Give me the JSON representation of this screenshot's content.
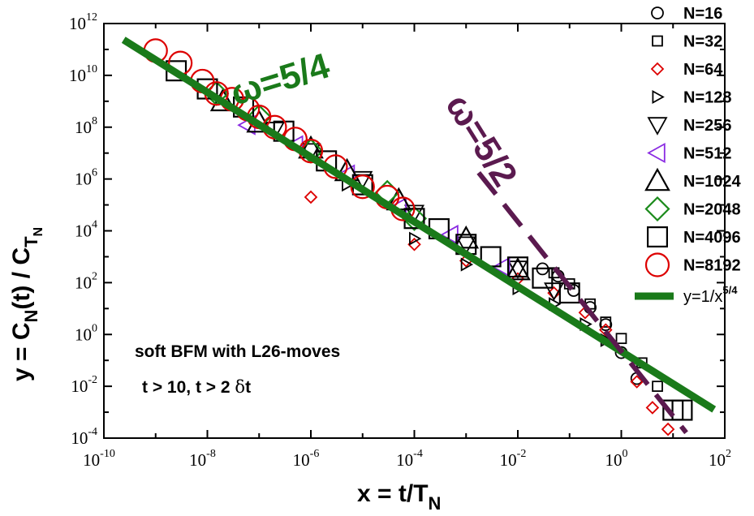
{
  "chart_data": {
    "type": "scatter",
    "xlabel": {
      "main": "x = t/T",
      "sub": "N"
    },
    "ylabel": {
      "p1": "y = C",
      "s1": "N",
      "p2": "(t) / C",
      "s2": "T",
      "s3": "N"
    },
    "xscale": "log",
    "yscale": "log",
    "xlim": [
      1e-10,
      100
    ],
    "ylim": [
      0.0001,
      1000000000000.0
    ],
    "x_ticks": [
      {
        "value": 1e-10,
        "base": "10",
        "exp": "-10"
      },
      {
        "value": 1e-08,
        "base": "10",
        "exp": "-8"
      },
      {
        "value": 1e-06,
        "base": "10",
        "exp": "-6"
      },
      {
        "value": 0.0001,
        "base": "10",
        "exp": "-4"
      },
      {
        "value": 0.01,
        "base": "10",
        "exp": "-2"
      },
      {
        "value": 1,
        "base": "10",
        "exp": "0"
      },
      {
        "value": 100,
        "base": "10",
        "exp": "2"
      }
    ],
    "y_ticks": [
      {
        "value": 0.0001,
        "base": "10",
        "exp": "-4"
      },
      {
        "value": 0.01,
        "base": "10",
        "exp": "-2"
      },
      {
        "value": 1,
        "base": "10",
        "exp": "0"
      },
      {
        "value": 100,
        "base": "10",
        "exp": "2"
      },
      {
        "value": 10000.0,
        "base": "10",
        "exp": "4"
      },
      {
        "value": 1000000.0,
        "base": "10",
        "exp": "6"
      },
      {
        "value": 100000000.0,
        "base": "10",
        "exp": "8"
      },
      {
        "value": 10000000000.0,
        "base": "10",
        "exp": "10"
      },
      {
        "value": 1000000000000.0,
        "base": "10",
        "exp": "12"
      }
    ],
    "annotations": {
      "line1": "soft BFM with L26-moves",
      "line2a": "t > 10, t > 2 ",
      "line2b": "δ",
      "line2c": "t"
    },
    "omega_labels": {
      "green": "ω=5/4",
      "purple": "ω=5/2"
    },
    "legend_placement": "right",
    "lines": [
      {
        "name": "y=1/x",
        "exp_label": "5/4",
        "color": "#1a7a1a",
        "style": "solid",
        "exponent": -1.25,
        "x_range": [
          2.4e-10,
          62
        ]
      },
      {
        "name": "",
        "color": "#5b1a4f",
        "style": "dashed",
        "exponent": -2.5,
        "x_range": [
          0.00175,
          18
        ]
      }
    ],
    "series": [
      {
        "name": "N=16",
        "marker": "circle",
        "size": "small",
        "color": "#000000",
        "points": [
          [
            0.03,
            340
          ],
          [
            0.06,
            180
          ],
          [
            0.12,
            50
          ],
          [
            0.25,
            11
          ],
          [
            0.5,
            2.4
          ],
          [
            1.0,
            0.2
          ],
          [
            2.0,
            0.02
          ]
        ]
      },
      {
        "name": "N=32",
        "marker": "square",
        "size": "small",
        "color": "#000000",
        "points": [
          [
            0.05,
            240
          ],
          [
            0.1,
            90
          ],
          [
            0.25,
            15
          ],
          [
            0.5,
            3
          ],
          [
            1.0,
            0.7
          ],
          [
            2.5,
            0.08
          ],
          [
            5.0,
            0.01
          ]
        ]
      },
      {
        "name": "N=64",
        "marker": "diamond",
        "size": "small",
        "color": "#dd0000",
        "points": [
          [
            1e-06,
            200000.0
          ],
          [
            0.0001,
            3000.0
          ],
          [
            0.001,
            700
          ],
          [
            0.01,
            140
          ],
          [
            0.05,
            40
          ],
          [
            0.2,
            7
          ],
          [
            0.5,
            1.5
          ],
          [
            2.0,
            0.015
          ],
          [
            4.0,
            0.0015
          ],
          [
            8.0,
            0.00022
          ]
        ]
      },
      {
        "name": "N=128",
        "marker": "triangle-right",
        "size": "small",
        "color": "#000000",
        "points": [
          [
            5e-06,
            600000.0
          ],
          [
            0.0001,
            5000.0
          ],
          [
            0.001,
            500
          ],
          [
            0.01,
            60
          ],
          [
            0.05,
            15
          ],
          [
            0.2,
            2.5
          ],
          [
            0.5,
            0.6
          ]
        ]
      },
      {
        "name": "N=256",
        "marker": "triangle-down",
        "size": "medium",
        "color": "#000000",
        "points": [
          [
            2e-07,
            80000000.0
          ],
          [
            1e-06,
            12000000.0
          ],
          [
            1e-05,
            1000000.0
          ],
          [
            0.0001,
            50000.0
          ],
          [
            0.001,
            3000.0
          ],
          [
            0.01,
            350
          ],
          [
            0.05,
            50
          ]
        ]
      },
      {
        "name": "N=512",
        "marker": "triangle-left",
        "size": "medium",
        "color": "#8a2be2",
        "points": [
          [
            6e-08,
            120000000.0
          ],
          [
            5e-07,
            20000000.0
          ],
          [
            5e-06,
            1500000.0
          ],
          [
            5e-05,
            80000.0
          ],
          [
            0.0005,
            7000.0
          ],
          [
            0.005,
            400
          ]
        ]
      },
      {
        "name": "N=1024",
        "marker": "triangle-up",
        "size": "large",
        "color": "#000000",
        "points": [
          [
            2e-08,
            1000000000.0
          ],
          [
            1e-07,
            150000000.0
          ],
          [
            1e-06,
            15000000.0
          ],
          [
            5e-06,
            2000000.0
          ],
          [
            5e-05,
            150000.0
          ],
          [
            0.001,
            5000.0
          ],
          [
            0.01,
            300
          ]
        ]
      },
      {
        "name": "N=2048",
        "marker": "diamond",
        "size": "large",
        "color": "#1a8a1a",
        "points": [
          [
            1.5e-08,
            2000000000.0
          ],
          [
            1e-07,
            250000000.0
          ],
          [
            1e-06,
            12000000.0
          ],
          [
            3e-05,
            300000.0
          ],
          [
            0.0001,
            30000.0
          ]
        ]
      },
      {
        "name": "N=4096",
        "marker": "square",
        "size": "large",
        "color": "#000000",
        "points": [
          [
            2.5e-09,
            15000000000.0
          ],
          [
            1e-08,
            3000000000.0
          ],
          [
            5e-08,
            600000000.0
          ],
          [
            3e-07,
            70000000.0
          ],
          [
            2e-06,
            5000000.0
          ],
          [
            1e-05,
            600000.0
          ],
          [
            0.0001,
            30000.0
          ],
          [
            0.0003,
            12000.0
          ],
          [
            0.001,
            3000.0
          ],
          [
            0.003,
            1000.0
          ],
          [
            0.01,
            400
          ],
          [
            0.03,
            150
          ],
          [
            0.1,
            40
          ],
          [
            10,
            0.0012
          ],
          [
            15,
            0.0012
          ]
        ]
      },
      {
        "name": "N=8192",
        "marker": "circle",
        "size": "large",
        "color": "#dd0000",
        "points": [
          [
            1e-09,
            90000000000.0
          ],
          [
            3e-09,
            30000000000.0
          ],
          [
            8e-09,
            6000000000.0
          ],
          [
            1.5e-08,
            2000000000.0
          ],
          [
            3e-08,
            1200000000.0
          ],
          [
            6e-08,
            500000000.0
          ],
          [
            1e-07,
            250000000.0
          ],
          [
            2e-07,
            100000000.0
          ],
          [
            5e-07,
            35000000.0
          ],
          [
            1e-06,
            12000000.0
          ],
          [
            3e-06,
            3000000.0
          ],
          [
            1e-05,
            500000.0
          ],
          [
            3e-05,
            200000.0
          ],
          [
            6e-05,
            70000.0
          ]
        ]
      }
    ]
  }
}
